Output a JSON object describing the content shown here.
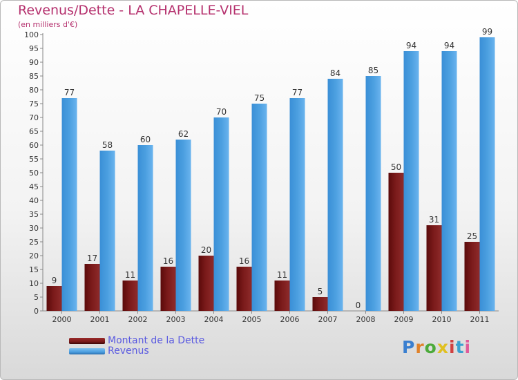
{
  "title": "Revenus/Dette - LA CHAPELLE-VIEL",
  "subtitle": "(en milliers d'€)",
  "logo": {
    "text": "Proxiti",
    "colors": [
      "#3a7fd0",
      "#e0822a",
      "#4caa3a",
      "#e0c020",
      "#d04040",
      "#3aa0d0",
      "#e05a9a"
    ]
  },
  "colors": {
    "dette": "#7a1a1a",
    "revenus": "#4b9fe0"
  },
  "chart_data": {
    "type": "bar",
    "categories": [
      "2000",
      "2001",
      "2002",
      "2003",
      "2004",
      "2005",
      "2006",
      "2007",
      "2008",
      "2009",
      "2010",
      "2011"
    ],
    "series": [
      {
        "name": "Montant de la Dette",
        "values": [
          9,
          17,
          11,
          16,
          20,
          16,
          11,
          5,
          0,
          50,
          31,
          25
        ]
      },
      {
        "name": "Revenus",
        "values": [
          77,
          58,
          60,
          62,
          70,
          75,
          77,
          84,
          85,
          94,
          94,
          99
        ]
      }
    ],
    "ylim": [
      0,
      100
    ],
    "ytick_step": 5,
    "grid": false,
    "legend": "bottom-left"
  }
}
